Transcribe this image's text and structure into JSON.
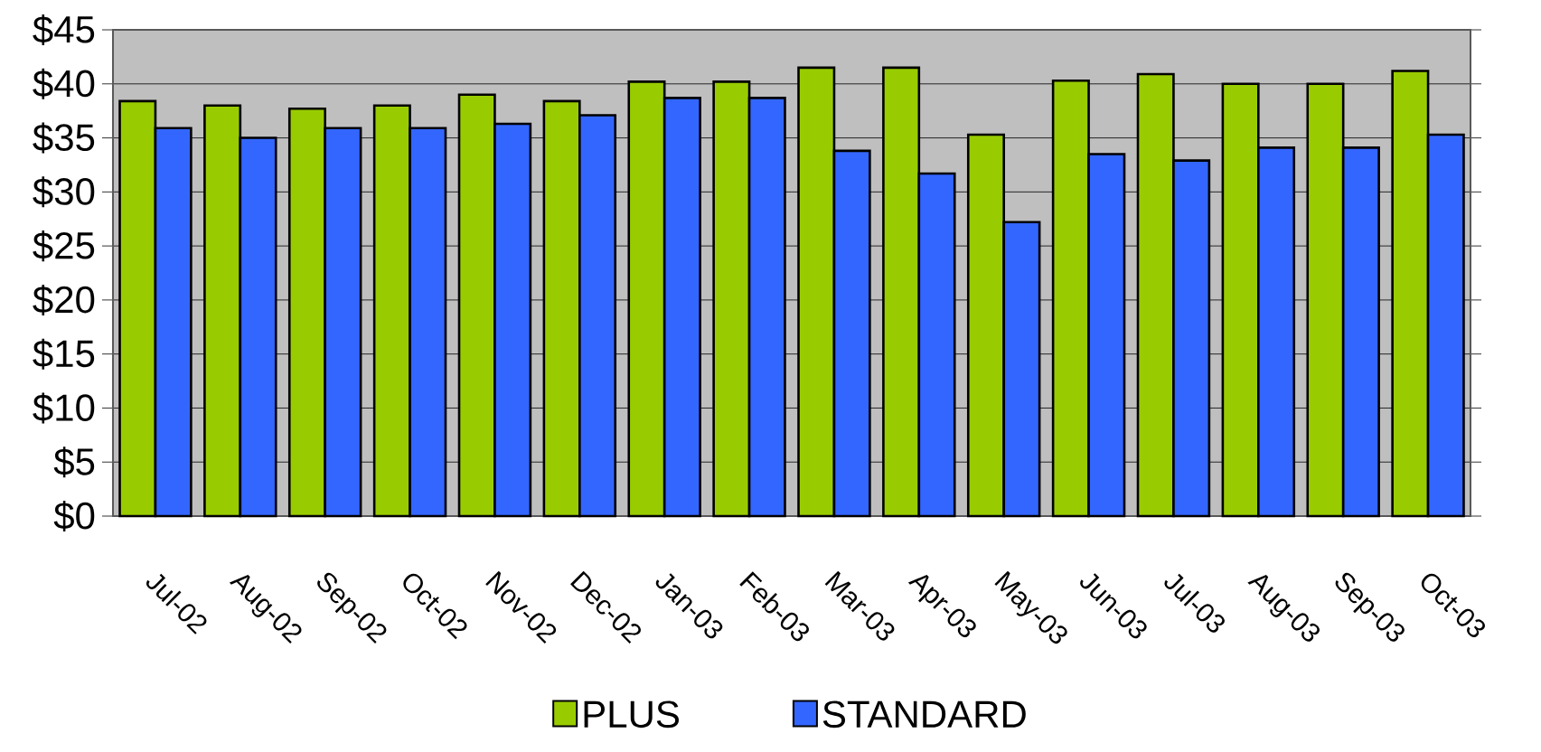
{
  "chart_data": {
    "type": "bar",
    "categories": [
      "Jul-02",
      "Aug-02",
      "Sep-02",
      "Oct-02",
      "Nov-02",
      "Dec-02",
      "Jan-03",
      "Feb-03",
      "Mar-03",
      "Apr-03",
      "May-03",
      "Jun-03",
      "Jul-03",
      "Aug-03",
      "Sep-03",
      "Oct-03"
    ],
    "series": [
      {
        "name": "PLUS",
        "color": "#99cc00",
        "values": [
          38.4,
          38.0,
          37.7,
          38.0,
          39.0,
          38.4,
          40.2,
          40.2,
          41.5,
          41.5,
          35.3,
          40.3,
          40.9,
          40.0,
          40.0,
          41.2
        ]
      },
      {
        "name": "STANDARD",
        "color": "#3366ff",
        "values": [
          35.9,
          35.0,
          35.9,
          35.9,
          36.3,
          37.1,
          38.7,
          38.7,
          33.8,
          31.7,
          27.2,
          33.5,
          32.9,
          34.1,
          34.1,
          35.3
        ]
      }
    ],
    "ylim": [
      0,
      45
    ],
    "yticks": [
      {
        "value": 0,
        "label": "$0"
      },
      {
        "value": 5,
        "label": "$5"
      },
      {
        "value": 10,
        "label": "$10"
      },
      {
        "value": 15,
        "label": "$15"
      },
      {
        "value": 20,
        "label": "$20"
      },
      {
        "value": 25,
        "label": "$25"
      },
      {
        "value": 30,
        "label": "$30"
      },
      {
        "value": 35,
        "label": "$35"
      },
      {
        "value": 40,
        "label": "$40"
      },
      {
        "value": 45,
        "label": "$45"
      }
    ],
    "grid": "y",
    "legend": "bottom"
  }
}
